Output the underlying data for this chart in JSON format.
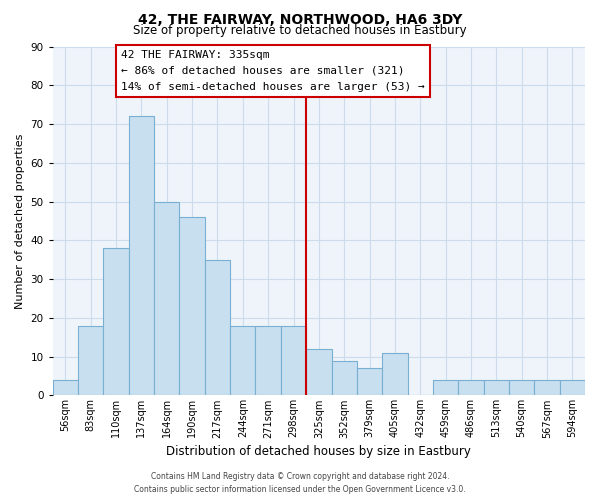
{
  "title": "42, THE FAIRWAY, NORTHWOOD, HA6 3DY",
  "subtitle": "Size of property relative to detached houses in Eastbury",
  "xlabel": "Distribution of detached houses by size in Eastbury",
  "ylabel": "Number of detached properties",
  "bin_labels": [
    "56sqm",
    "83sqm",
    "110sqm",
    "137sqm",
    "164sqm",
    "190sqm",
    "217sqm",
    "244sqm",
    "271sqm",
    "298sqm",
    "325sqm",
    "352sqm",
    "379sqm",
    "405sqm",
    "432sqm",
    "459sqm",
    "486sqm",
    "513sqm",
    "540sqm",
    "567sqm",
    "594sqm"
  ],
  "bar_heights": [
    4,
    18,
    38,
    72,
    50,
    46,
    35,
    18,
    18,
    18,
    12,
    9,
    7,
    11,
    0,
    4,
    4,
    4,
    4,
    4,
    4
  ],
  "bar_color": "#c8dff0",
  "bar_edge_color": "#7aafd4",
  "vline_index": 10,
  "vline_color": "#cc0000",
  "ylim": [
    0,
    90
  ],
  "yticks": [
    0,
    10,
    20,
    30,
    40,
    50,
    60,
    70,
    80,
    90
  ],
  "annotation_title": "42 THE FAIRWAY: 335sqm",
  "annotation_line1": "← 86% of detached houses are smaller (321)",
  "annotation_line2": "14% of semi-detached houses are larger (53) →",
  "footer_line1": "Contains HM Land Registry data © Crown copyright and database right 2024.",
  "footer_line2": "Contains public sector information licensed under the Open Government Licence v3.0.",
  "background_color": "#ffffff",
  "grid_color": "#ccdcec",
  "title_fontsize": 10,
  "subtitle_fontsize": 8.5,
  "ylabel_fontsize": 8,
  "xlabel_fontsize": 8.5,
  "tick_fontsize": 7,
  "annotation_fontsize": 8
}
